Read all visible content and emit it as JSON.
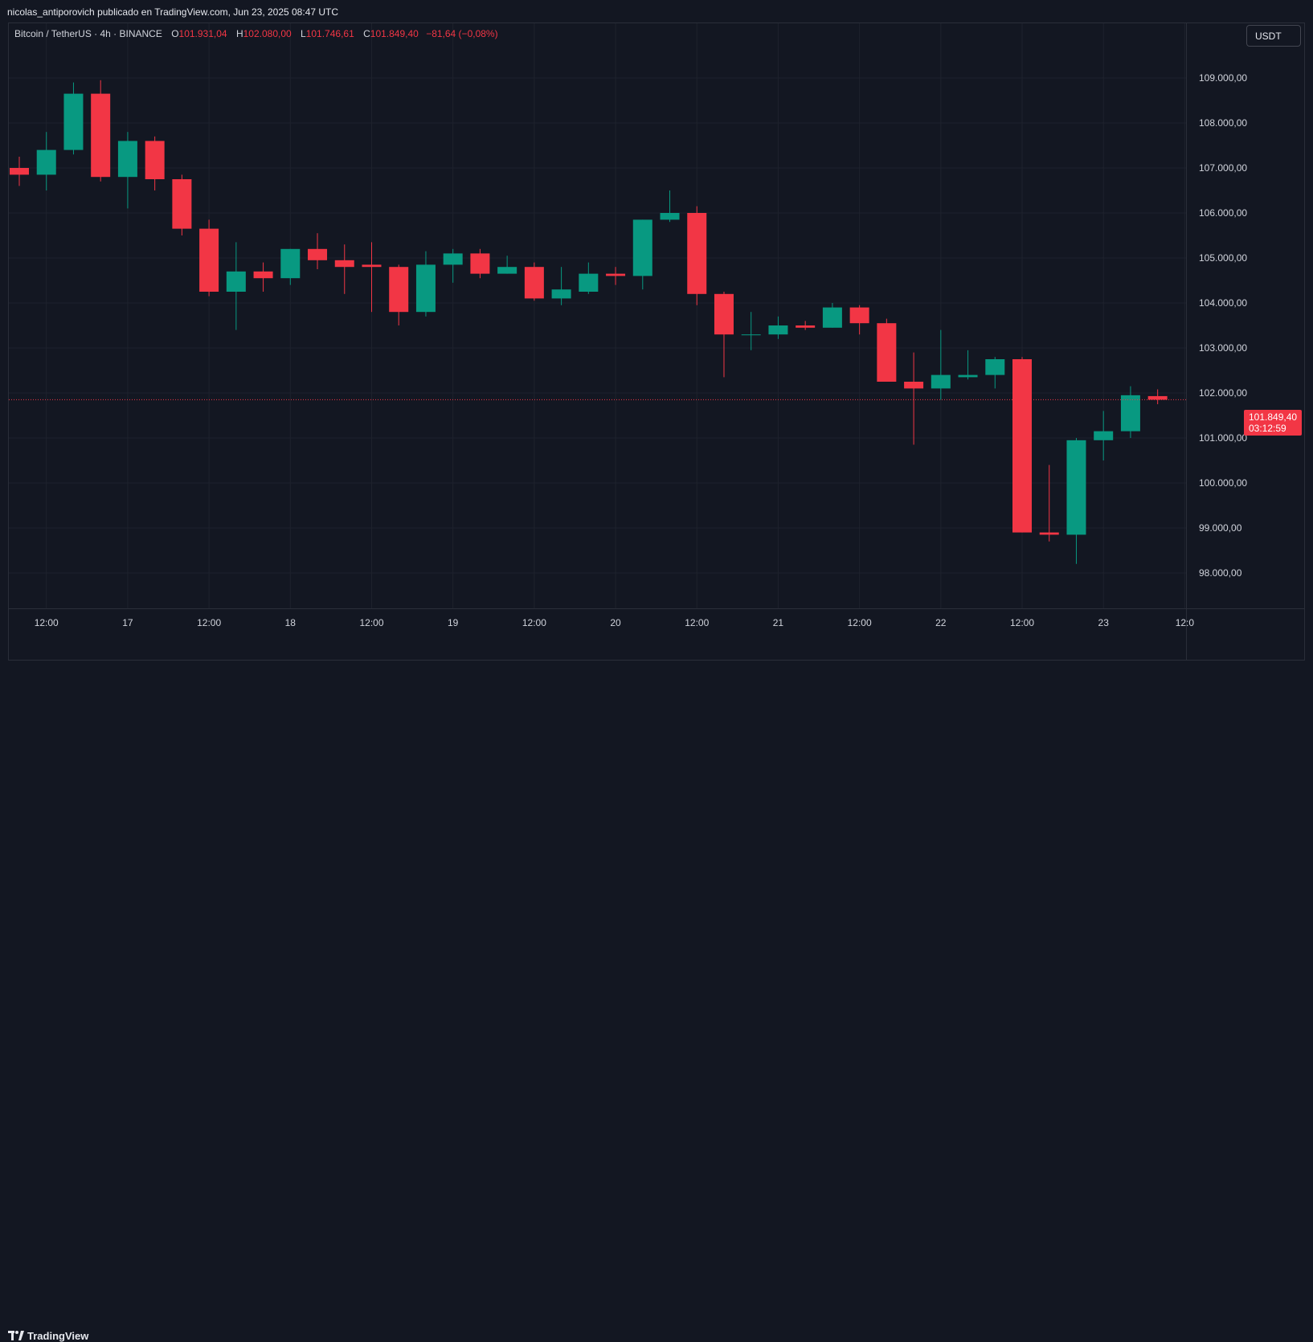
{
  "publish_line": "nicolas_antiporovich publicado en TradingView.com, Jun 23, 2025 08:47 UTC",
  "legend": {
    "symbol": "Bitcoin / TetherUS · 4h · BINANCE",
    "open_label": "O",
    "open": "101.931,04",
    "high_label": "H",
    "high": "102.080,00",
    "low_label": "L",
    "low": "101.746,61",
    "close_label": "C",
    "close": "101.849,40",
    "change": "−81,64 (−0,08%)"
  },
  "currency_button": "USDT",
  "last_price": {
    "value": "101.849,40",
    "countdown": "03:12:59"
  },
  "footer": {
    "logo_text": "TradingView",
    "logo_icon": "tradingview-logo-icon"
  },
  "colors": {
    "up": "#089981",
    "down": "#f23645",
    "background": "#131722",
    "grid": "#1e222d",
    "text": "#d1d4dc"
  },
  "chart_data": {
    "type": "candlestick",
    "interval": "4h",
    "y_axis": {
      "range": [
        97300,
        110600
      ],
      "ticks": [
        98000,
        99000,
        100000,
        101000,
        102000,
        103000,
        104000,
        105000,
        106000,
        107000,
        108000,
        109000
      ],
      "tick_labels": [
        "98.000,00",
        "99.000,00",
        "100.000,00",
        "101.000,00",
        "102.000,00",
        "103.000,00",
        "104.000,00",
        "105.000,00",
        "106.000,00",
        "107.000,00",
        "108.000,00",
        "109.000,00"
      ],
      "side": "right"
    },
    "x_axis": {
      "ticks": [
        1,
        4,
        7,
        10,
        13,
        16,
        19,
        22,
        25,
        28,
        31,
        34,
        37,
        40,
        43
      ],
      "tick_labels": [
        "12:00",
        "17",
        "12:00",
        "18",
        "12:00",
        "19",
        "12:00",
        "20",
        "12:00",
        "21",
        "12:00",
        "22",
        "12:00",
        "23",
        "12:0"
      ]
    },
    "grid": true,
    "last_price_line": 101849.4,
    "candles": [
      {
        "o": 107000,
        "h": 107250,
        "l": 106600,
        "c": 106850
      },
      {
        "o": 106850,
        "h": 107800,
        "l": 106500,
        "c": 107400
      },
      {
        "o": 107400,
        "h": 108900,
        "l": 107300,
        "c": 108650
      },
      {
        "o": 108650,
        "h": 108950,
        "l": 106700,
        "c": 106800
      },
      {
        "o": 106800,
        "h": 107800,
        "l": 106100,
        "c": 107600
      },
      {
        "o": 107600,
        "h": 107700,
        "l": 106500,
        "c": 106750
      },
      {
        "o": 106750,
        "h": 106850,
        "l": 105500,
        "c": 105650
      },
      {
        "o": 105650,
        "h": 105850,
        "l": 104150,
        "c": 104250
      },
      {
        "o": 104250,
        "h": 105350,
        "l": 103400,
        "c": 104700
      },
      {
        "o": 104700,
        "h": 104900,
        "l": 104250,
        "c": 104550
      },
      {
        "o": 104550,
        "h": 105200,
        "l": 104400,
        "c": 105200
      },
      {
        "o": 105200,
        "h": 105550,
        "l": 104750,
        "c": 104950
      },
      {
        "o": 104950,
        "h": 105300,
        "l": 104200,
        "c": 104800
      },
      {
        "o": 104850,
        "h": 105350,
        "l": 103800,
        "c": 104800
      },
      {
        "o": 104800,
        "h": 104850,
        "l": 103500,
        "c": 103800
      },
      {
        "o": 103800,
        "h": 105150,
        "l": 103700,
        "c": 104850
      },
      {
        "o": 104850,
        "h": 105200,
        "l": 104450,
        "c": 105100
      },
      {
        "o": 105100,
        "h": 105200,
        "l": 104550,
        "c": 104650
      },
      {
        "o": 104650,
        "h": 105050,
        "l": 104650,
        "c": 104800
      },
      {
        "o": 104800,
        "h": 104900,
        "l": 104050,
        "c": 104100
      },
      {
        "o": 104100,
        "h": 104800,
        "l": 103950,
        "c": 104300
      },
      {
        "o": 104250,
        "h": 104900,
        "l": 104200,
        "c": 104650
      },
      {
        "o": 104650,
        "h": 104800,
        "l": 104400,
        "c": 104600
      },
      {
        "o": 104600,
        "h": 105850,
        "l": 104300,
        "c": 105850
      },
      {
        "o": 105850,
        "h": 106500,
        "l": 105800,
        "c": 106000
      },
      {
        "o": 106000,
        "h": 106150,
        "l": 103950,
        "c": 104200
      },
      {
        "o": 104200,
        "h": 104250,
        "l": 102350,
        "c": 103300
      },
      {
        "o": 103300,
        "h": 103800,
        "l": 102950,
        "c": 103300
      },
      {
        "o": 103300,
        "h": 103700,
        "l": 103200,
        "c": 103500
      },
      {
        "o": 103500,
        "h": 103600,
        "l": 103400,
        "c": 103450
      },
      {
        "o": 103450,
        "h": 104000,
        "l": 103450,
        "c": 103900
      },
      {
        "o": 103900,
        "h": 103950,
        "l": 103300,
        "c": 103550
      },
      {
        "o": 103550,
        "h": 103650,
        "l": 102250,
        "c": 102250
      },
      {
        "o": 102250,
        "h": 102900,
        "l": 100850,
        "c": 102100
      },
      {
        "o": 102100,
        "h": 103400,
        "l": 101850,
        "c": 102400
      },
      {
        "o": 102350,
        "h": 102950,
        "l": 102300,
        "c": 102400
      },
      {
        "o": 102400,
        "h": 102800,
        "l": 102100,
        "c": 102750
      },
      {
        "o": 102750,
        "h": 102800,
        "l": 98900,
        "c": 98900
      },
      {
        "o": 98900,
        "h": 100400,
        "l": 98700,
        "c": 98850
      },
      {
        "o": 98850,
        "h": 101000,
        "l": 98200,
        "c": 100950
      },
      {
        "o": 100950,
        "h": 101600,
        "l": 100500,
        "c": 101150
      },
      {
        "o": 101150,
        "h": 102150,
        "l": 101000,
        "c": 101950
      },
      {
        "o": 101930,
        "h": 102080,
        "l": 101750,
        "c": 101850
      }
    ]
  }
}
